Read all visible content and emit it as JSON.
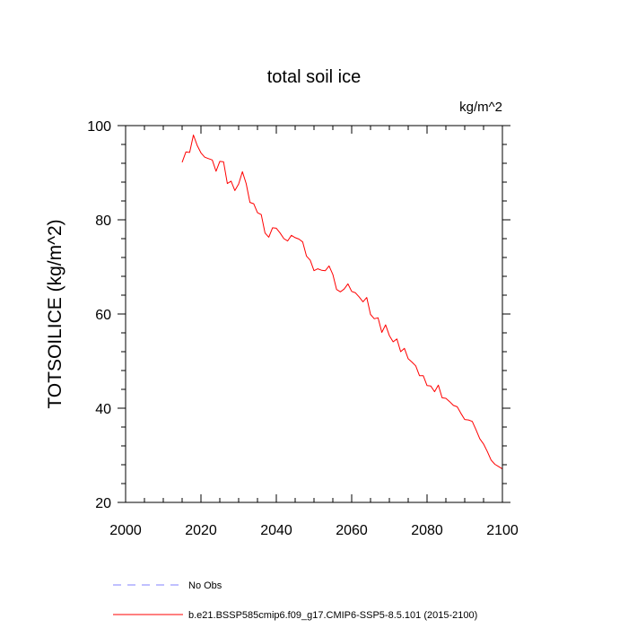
{
  "chart_data": {
    "type": "line",
    "title": "total soil ice",
    "units": "kg/m^2",
    "ylabel": "TOTSOILICE  (kg/m^2)",
    "xlabel": "",
    "xlim": [
      2000,
      2100
    ],
    "ylim": [
      20,
      100
    ],
    "x_ticks": [
      2000,
      2020,
      2040,
      2060,
      2080,
      2100
    ],
    "y_ticks": [
      20,
      40,
      60,
      80,
      100
    ],
    "grid": false,
    "legend_position": "bottom",
    "series": [
      {
        "name": "b.e21.BSSP585cmip6.f09_g17.CMIP6-SSP5-8.5.101 (2015-2100)",
        "color": "#ff0000",
        "style": "solid",
        "x": [
          2015,
          2016,
          2017,
          2018,
          2019,
          2020,
          2021,
          2022,
          2023,
          2024,
          2025,
          2026,
          2027,
          2028,
          2029,
          2030,
          2031,
          2032,
          2033,
          2034,
          2035,
          2036,
          2037,
          2038,
          2039,
          2040,
          2041,
          2042,
          2043,
          2044,
          2045,
          2046,
          2047,
          2048,
          2049,
          2050,
          2051,
          2052,
          2053,
          2054,
          2055,
          2056,
          2057,
          2058,
          2059,
          2060,
          2061,
          2062,
          2063,
          2064,
          2065,
          2066,
          2067,
          2068,
          2069,
          2070,
          2071,
          2072,
          2073,
          2074,
          2075,
          2076,
          2077,
          2078,
          2079,
          2080,
          2081,
          2082,
          2083,
          2084,
          2085,
          2086,
          2087,
          2088,
          2089,
          2090,
          2091,
          2092,
          2093,
          2094,
          2095,
          2096,
          2097,
          2098,
          2099,
          2100
        ],
        "values": [
          92.2,
          94.4,
          94.3,
          98.0,
          95.8,
          94.2,
          93.3,
          93.0,
          92.7,
          90.3,
          92.4,
          92.3,
          87.7,
          88.2,
          86.2,
          87.6,
          90.2,
          87.7,
          83.7,
          83.4,
          81.5,
          81.1,
          77.2,
          76.3,
          78.3,
          78.2,
          77.2,
          76.0,
          75.5,
          76.7,
          76.2,
          75.9,
          75.3,
          72.3,
          71.4,
          69.2,
          69.6,
          69.3,
          69.2,
          70.2,
          68.4,
          65.2,
          64.7,
          65.3,
          66.4,
          64.8,
          64.5,
          63.6,
          62.6,
          63.5,
          59.9,
          59.0,
          59.2,
          56.1,
          57.7,
          55.4,
          54.1,
          54.7,
          52.0,
          52.7,
          50.5,
          49.8,
          49.0,
          46.9,
          46.9,
          44.8,
          44.7,
          43.5,
          44.9,
          42.2,
          42.1,
          41.4,
          40.6,
          40.3,
          38.9,
          37.6,
          37.5,
          37.2,
          35.4,
          33.5,
          32.4,
          30.8,
          29.0,
          28.1,
          27.6,
          27.1
        ]
      },
      {
        "name": "No Obs",
        "color": "#8080ff",
        "style": "dashed",
        "x": [],
        "values": []
      }
    ]
  }
}
